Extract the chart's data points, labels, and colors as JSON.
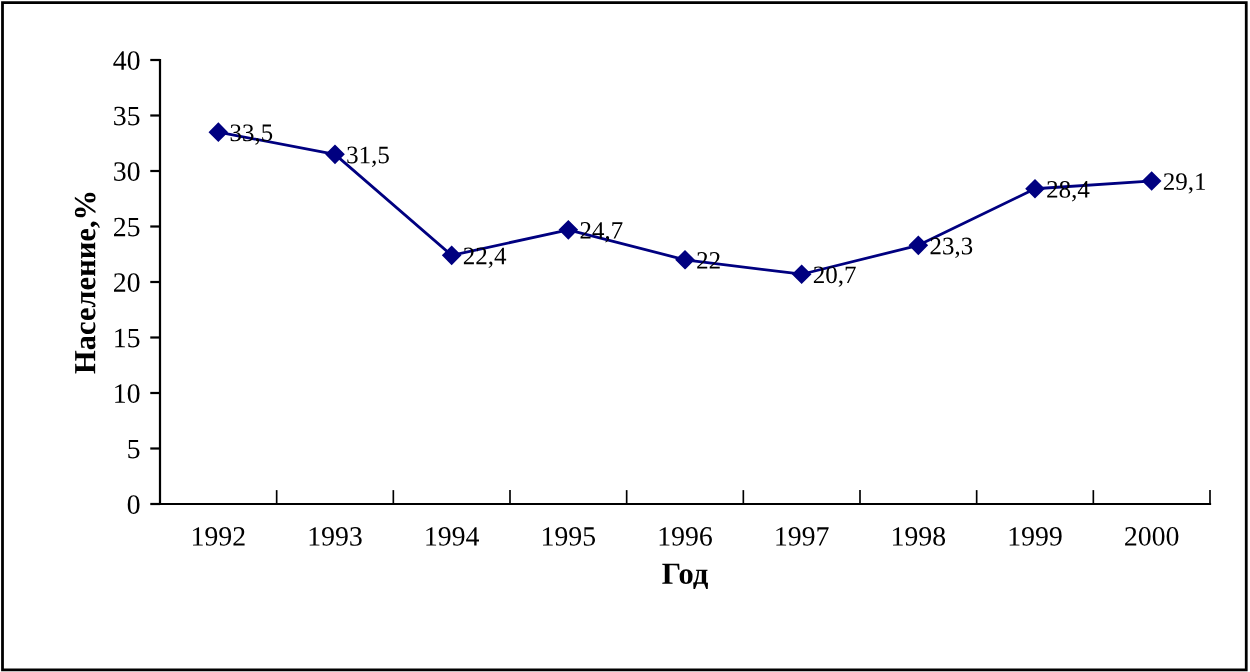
{
  "chart_data": {
    "type": "line",
    "xlabel": "Год",
    "ylabel": "Население,%",
    "categories": [
      "1992",
      "1993",
      "1994",
      "1995",
      "1996",
      "1997",
      "1998",
      "1999",
      "2000"
    ],
    "series": [
      {
        "color": "#000080",
        "values": [
          33.5,
          31.5,
          22.4,
          24.7,
          22,
          20.7,
          23.3,
          28.4,
          29.1
        ],
        "value_labels": [
          "33,5",
          "31,5",
          "22,4",
          "24,7",
          "22",
          "20,7",
          "23,3",
          "28,4",
          "29,1"
        ]
      }
    ],
    "ylim": [
      0,
      40
    ],
    "yticks": [
      0,
      5,
      10,
      15,
      20,
      25,
      30,
      35,
      40
    ],
    "grid": false,
    "legend": false,
    "marker": "diamond",
    "line_style": "solid"
  }
}
